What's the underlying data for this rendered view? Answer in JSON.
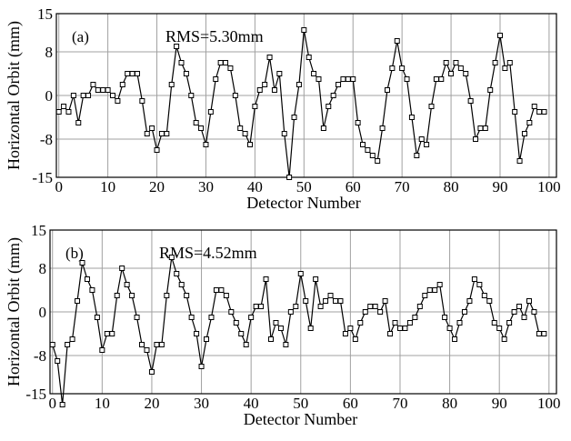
{
  "chart_data": [
    {
      "type": "line",
      "annotations": [
        "(a)",
        "RMS=5.30mm"
      ],
      "xlabel": "Detector Number",
      "ylabel": "Horizontal Orbit (mm)",
      "x": [
        0,
        1,
        2,
        3,
        4,
        5,
        6,
        7,
        8,
        9,
        10,
        11,
        12,
        13,
        14,
        15,
        16,
        17,
        18,
        19,
        20,
        21,
        22,
        23,
        24,
        25,
        26,
        27,
        28,
        29,
        30,
        31,
        32,
        33,
        34,
        35,
        36,
        37,
        38,
        39,
        40,
        41,
        42,
        43,
        44,
        45,
        46,
        47,
        48,
        49,
        50,
        51,
        52,
        53,
        54,
        55,
        56,
        57,
        58,
        59,
        60,
        61,
        62,
        63,
        64,
        65,
        66,
        67,
        68,
        69,
        70,
        71,
        72,
        73,
        74,
        75,
        76,
        77,
        78,
        79,
        80,
        81,
        82,
        83,
        84,
        85,
        86,
        87,
        88,
        89,
        90,
        91,
        92,
        93,
        94,
        95,
        96,
        97,
        98,
        99
      ],
      "series": [
        {
          "color": "#000000",
          "values": [
            -3,
            -2,
            -3,
            0,
            -5,
            0,
            0,
            2,
            1,
            1,
            1,
            0,
            -1,
            2,
            4,
            4,
            4,
            -1,
            -7,
            -6,
            -10,
            -7,
            -7,
            2,
            9,
            6,
            4,
            0,
            -5,
            -6,
            -9,
            -3,
            3,
            6,
            6,
            5,
            0,
            -6,
            -7,
            -9,
            -2,
            1,
            2,
            7,
            1,
            4,
            -7,
            -15,
            -4,
            2,
            12,
            7,
            4,
            3,
            -6,
            -2,
            0,
            2,
            3,
            3,
            3,
            -5,
            -9,
            -10,
            -11,
            -12,
            -6,
            1,
            5,
            10,
            5,
            3,
            -4,
            -11,
            -8,
            -9,
            -2,
            3,
            3,
            6,
            4,
            6,
            5,
            4,
            -1,
            -8,
            -6,
            -6,
            1,
            6,
            11,
            5,
            6,
            -3,
            -12,
            -7,
            -5,
            -2,
            -3,
            -3
          ]
        }
      ],
      "xlim": [
        -0.5,
        101.5
      ],
      "xticks": [
        0,
        10,
        20,
        30,
        40,
        50,
        60,
        70,
        80,
        90,
        100
      ],
      "ylim": [
        -15,
        15
      ],
      "yticks": [
        -15,
        -8,
        0,
        8,
        15
      ],
      "grid": true
    },
    {
      "type": "line",
      "annotations": [
        "(b)",
        "RMS=4.52mm"
      ],
      "xlabel": "Detector Number",
      "ylabel": "Horizontal Orbit (mm)",
      "x": [
        0,
        1,
        2,
        3,
        4,
        5,
        6,
        7,
        8,
        9,
        10,
        11,
        12,
        13,
        14,
        15,
        16,
        17,
        18,
        19,
        20,
        21,
        22,
        23,
        24,
        25,
        26,
        27,
        28,
        29,
        30,
        31,
        32,
        33,
        34,
        35,
        36,
        37,
        38,
        39,
        40,
        41,
        42,
        43,
        44,
        45,
        46,
        47,
        48,
        49,
        50,
        51,
        52,
        53,
        54,
        55,
        56,
        57,
        58,
        59,
        60,
        61,
        62,
        63,
        64,
        65,
        66,
        67,
        68,
        69,
        70,
        71,
        72,
        73,
        74,
        75,
        76,
        77,
        78,
        79,
        80,
        81,
        82,
        83,
        84,
        85,
        86,
        87,
        88,
        89,
        90,
        91,
        92,
        93,
        94,
        95,
        96,
        97,
        98,
        99
      ],
      "series": [
        {
          "color": "#000000",
          "values": [
            -6,
            -9,
            -17,
            -6,
            -5,
            2,
            9,
            6,
            4,
            -1,
            -7,
            -4,
            -4,
            3,
            8,
            5,
            3,
            -1,
            -6,
            -7,
            -11,
            -6,
            -6,
            3,
            10,
            7,
            5,
            3,
            -1,
            -4,
            -10,
            -5,
            -1,
            4,
            4,
            3,
            0,
            -2,
            -4,
            -6,
            -1,
            1,
            1,
            6,
            -5,
            -2,
            -3,
            -6,
            0,
            1,
            7,
            2,
            -3,
            6,
            1,
            2,
            3,
            2,
            2,
            -4,
            -3,
            -5,
            -2,
            0,
            1,
            1,
            0,
            2,
            -4,
            -2,
            -3,
            -3,
            -2,
            -1,
            1,
            3,
            4,
            4,
            5,
            -1,
            -3,
            -5,
            -2,
            0,
            2,
            6,
            5,
            3,
            2,
            -2,
            -3,
            -5,
            -2,
            0,
            1,
            -1,
            2,
            0,
            -4,
            -4
          ]
        }
      ],
      "xlim": [
        -0.5,
        101.5
      ],
      "xticks": [
        0,
        10,
        20,
        30,
        40,
        50,
        60,
        70,
        80,
        90,
        100
      ],
      "ylim": [
        -15,
        15
      ],
      "yticks": [
        -15,
        -8,
        0,
        8,
        15
      ],
      "grid": true
    }
  ]
}
